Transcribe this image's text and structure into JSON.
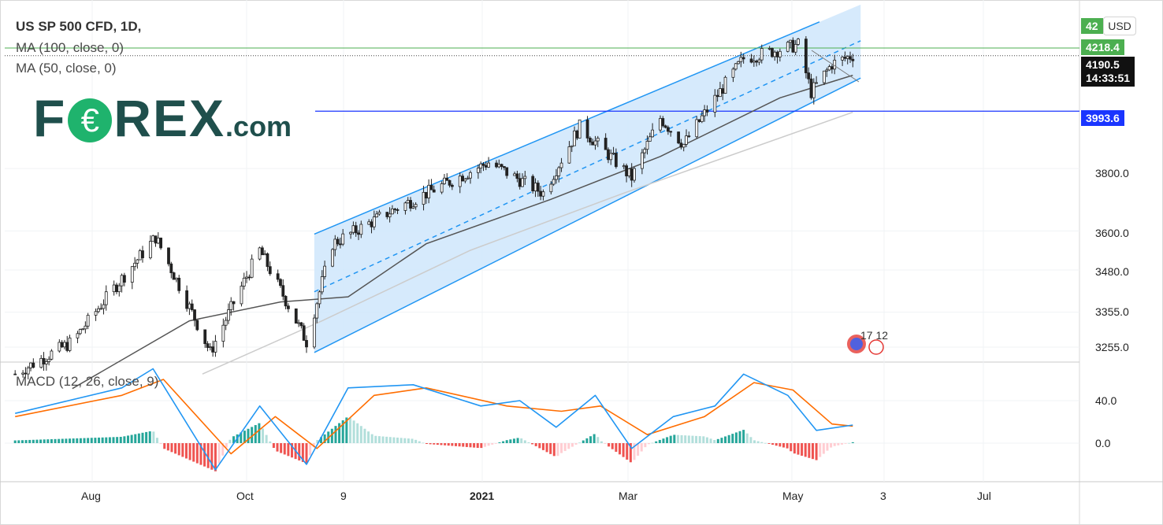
{
  "header": {
    "symbol": "US SP 500 CFD, 1D,",
    "ma100": "MA (100, close, 0)",
    "ma50": "MA (50, close, 0)",
    "macd": "MACD (12, 26, close, 9)"
  },
  "logo": {
    "part1": "F",
    "part2": "€",
    "part3": "REX",
    "part4": ".com"
  },
  "currency": "USD",
  "price_tags": {
    "top_partial": "42",
    "ma_level": "4218.4",
    "last_price": "4190.5",
    "countdown": "14:33:51",
    "horizontal_level": "3993.6"
  },
  "events": {
    "label": "17  12"
  },
  "colors": {
    "candle": "#222222",
    "channel_fill": "#cfe6fb",
    "channel_line": "#2196f3",
    "ma50": "#555555",
    "ma100": "#cccccc",
    "macd_line": "#2196f3",
    "signal_line": "#ff6d00",
    "hist_pos_strong": "#26a69a",
    "hist_pos_weak": "#b2dfdb",
    "hist_neg_strong": "#ef5350",
    "hist_neg_weak": "#ffcdd2",
    "level_line": "#1a35ff",
    "ma_level_line": "#4caf50"
  },
  "chart_data": {
    "type": "candlestick",
    "title": "US SP 500 CFD, 1D",
    "price_axis": {
      "ticks": [
        "3255.0",
        "3355.0",
        "3480.0",
        "3600.0",
        "3800.0",
        "4218.4",
        "4190.5",
        "3993.6"
      ],
      "tick_values": [
        3255,
        3355,
        3480,
        3600,
        3800
      ]
    },
    "time_axis": {
      "labels": [
        "Aug",
        "Oct",
        "9",
        "2021",
        "Mar",
        "May",
        "3",
        "Jul"
      ],
      "bold": [
        "2021"
      ]
    },
    "macd_axis": {
      "ticks": [
        "40.0",
        "0.0"
      ],
      "tick_values": [
        40,
        0
      ]
    },
    "key_points": [
      {
        "date": "2020-07-10",
        "close": 3180
      },
      {
        "date": "2020-08-01",
        "close": 3270
      },
      {
        "date": "2020-09-02",
        "close": 3580
      },
      {
        "date": "2020-09-23",
        "close": 3240
      },
      {
        "date": "2020-10-12",
        "close": 3540
      },
      {
        "date": "2020-10-30",
        "close": 3270
      },
      {
        "date": "2020-11-09",
        "close": 3560
      },
      {
        "date": "2020-12-01",
        "close": 3660
      },
      {
        "date": "2021-01-08",
        "close": 3820
      },
      {
        "date": "2021-01-29",
        "close": 3720
      },
      {
        "date": "2021-02-12",
        "close": 3940
      },
      {
        "date": "2021-03-04",
        "close": 3770
      },
      {
        "date": "2021-03-15",
        "close": 3970
      },
      {
        "date": "2021-03-24",
        "close": 3880
      },
      {
        "date": "2021-04-16",
        "close": 4180
      },
      {
        "date": "2021-05-07",
        "close": 4230
      },
      {
        "date": "2021-05-12",
        "close": 4060
      },
      {
        "date": "2021-05-20",
        "close": 4160
      },
      {
        "date": "2021-05-28",
        "close": 4192
      }
    ],
    "ma50_points": [
      {
        "date": "2020-08-01",
        "value": 3140
      },
      {
        "date": "2020-09-15",
        "value": 3330
      },
      {
        "date": "2020-10-20",
        "value": 3385
      },
      {
        "date": "2020-11-15",
        "value": 3400
      },
      {
        "date": "2020-12-15",
        "value": 3560
      },
      {
        "date": "2021-02-01",
        "value": 3700
      },
      {
        "date": "2021-03-15",
        "value": 3840
      },
      {
        "date": "2021-04-30",
        "value": 4040
      },
      {
        "date": "2021-05-28",
        "value": 4120
      }
    ],
    "ma100_points": [
      {
        "date": "2020-09-20",
        "value": 3180
      },
      {
        "date": "2020-11-05",
        "value": 3330
      },
      {
        "date": "2021-01-01",
        "value": 3540
      },
      {
        "date": "2021-03-01",
        "value": 3720
      },
      {
        "date": "2021-05-28",
        "value": 3990
      }
    ],
    "channel": {
      "lower_start": {
        "date": "2020-11-02",
        "value": 3240
      },
      "lower_end": {
        "date": "2021-05-31",
        "value": 4110
      },
      "upper_start": {
        "date": "2020-11-02",
        "value": 3590
      },
      "upper_end": {
        "date": "2021-05-31",
        "value": 4380
      },
      "mid_start": {
        "date": "2020-11-02",
        "value": 3415
      },
      "mid_end": {
        "date": "2021-05-31",
        "value": 4245
      }
    },
    "horizontal_levels": [
      {
        "label": "4218.4",
        "value": 4218.4
      },
      {
        "label": "4190.5",
        "value": 4190.5
      },
      {
        "label": "3993.6",
        "value": 3993.6
      }
    ],
    "macd": {
      "macd_points": [
        {
          "date": "2020-07-10",
          "value": 28
        },
        {
          "date": "2020-08-20",
          "value": 52
        },
        {
          "date": "2020-09-01",
          "value": 70
        },
        {
          "date": "2020-09-25",
          "value": -25
        },
        {
          "date": "2020-10-12",
          "value": 35
        },
        {
          "date": "2020-10-30",
          "value": -20
        },
        {
          "date": "2020-11-15",
          "value": 52
        },
        {
          "date": "2020-12-10",
          "value": 55
        },
        {
          "date": "2021-01-05",
          "value": 35
        },
        {
          "date": "2021-01-20",
          "value": 40
        },
        {
          "date": "2021-02-03",
          "value": 15
        },
        {
          "date": "2021-02-18",
          "value": 45
        },
        {
          "date": "2021-03-04",
          "value": -5
        },
        {
          "date": "2021-03-20",
          "value": 25
        },
        {
          "date": "2021-04-05",
          "value": 35
        },
        {
          "date": "2021-04-16",
          "value": 65
        },
        {
          "date": "2021-05-03",
          "value": 45
        },
        {
          "date": "2021-05-14",
          "value": 12
        },
        {
          "date": "2021-05-28",
          "value": 17
        }
      ],
      "signal_points": [
        {
          "date": "2020-07-10",
          "value": 25
        },
        {
          "date": "2020-08-20",
          "value": 45
        },
        {
          "date": "2020-09-05",
          "value": 60
        },
        {
          "date": "2020-10-01",
          "value": -10
        },
        {
          "date": "2020-10-18",
          "value": 25
        },
        {
          "date": "2020-11-03",
          "value": -5
        },
        {
          "date": "2020-11-25",
          "value": 45
        },
        {
          "date": "2020-12-15",
          "value": 52
        },
        {
          "date": "2021-01-15",
          "value": 35
        },
        {
          "date": "2021-02-05",
          "value": 30
        },
        {
          "date": "2021-02-20",
          "value": 35
        },
        {
          "date": "2021-03-10",
          "value": 8
        },
        {
          "date": "2021-04-01",
          "value": 25
        },
        {
          "date": "2021-04-20",
          "value": 57
        },
        {
          "date": "2021-05-05",
          "value": 50
        },
        {
          "date": "2021-05-20",
          "value": 18
        },
        {
          "date": "2021-05-28",
          "value": 16
        }
      ]
    }
  }
}
